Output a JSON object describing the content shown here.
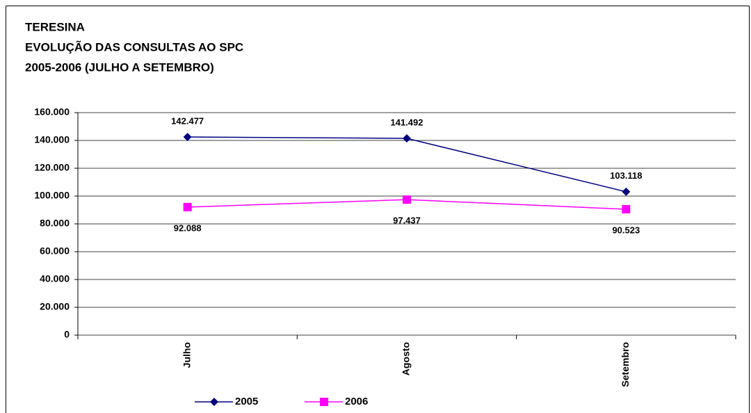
{
  "chart_data": {
    "type": "line",
    "title": [
      "TERESINA",
      "EVOLUÇÃO DAS CONSULTAS AO SPC",
      "2005-2006 (JULHO A SETEMBRO)"
    ],
    "categories": [
      "Julho",
      "Agosto",
      "Setembro"
    ],
    "series": [
      {
        "name": "2005",
        "color": "#000080",
        "marker": "diamond",
        "values": [
          142477,
          141492,
          103118
        ],
        "value_labels": [
          "142.477",
          "141.492",
          "103.118"
        ],
        "label_position": "above"
      },
      {
        "name": "2006",
        "color": "#ff00ff",
        "marker": "square",
        "values": [
          92088,
          97437,
          90523
        ],
        "value_labels": [
          "92.088",
          "97.437",
          "90.523"
        ],
        "label_position": "below"
      }
    ],
    "ylim": [
      0,
      160000
    ],
    "yticks": [
      0,
      {
        "value": 20000,
        "label": "20.000"
      },
      {
        "value": 40000,
        "label": "40.000"
      },
      {
        "value": 60000,
        "label": "60.000"
      },
      {
        "value": 80000,
        "label": "80.000"
      },
      {
        "value": 100000,
        "label": "100.000"
      },
      {
        "value": 120000,
        "label": "120.000"
      },
      {
        "value": 140000,
        "label": "140.000"
      },
      {
        "value": 160000,
        "label": "160.000"
      }
    ],
    "grid": true,
    "legend": "bottom"
  }
}
